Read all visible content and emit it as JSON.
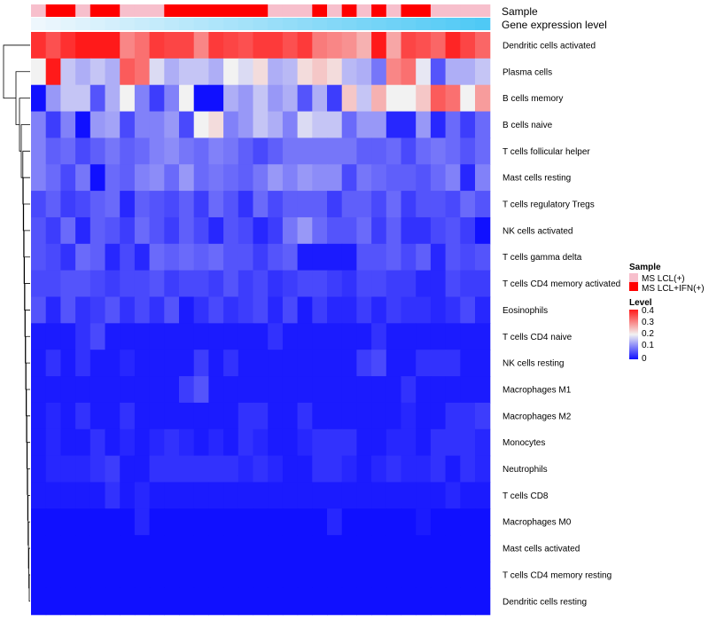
{
  "chart_data": {
    "type": "heatmap",
    "columns": 31,
    "value_range": [
      0,
      0.4
    ],
    "color_scale": {
      "low": "#1010ff",
      "mid": "#f2f2f2",
      "high": "#ff1a1a",
      "mid_value": 0.2
    },
    "annotation_rows": [
      {
        "name": "Sample",
        "labels": [
          "MS LCL(+)",
          "MS LCL+IFN(+)",
          "MS LCL+IFN(+)",
          "MS LCL(+)",
          "MS LCL+IFN(+)",
          "MS LCL+IFN(+)",
          "MS LCL(+)",
          "MS LCL(+)",
          "MS LCL(+)",
          "MS LCL+IFN(+)",
          "MS LCL+IFN(+)",
          "MS LCL+IFN(+)",
          "MS LCL+IFN(+)",
          "MS LCL+IFN(+)",
          "MS LCL+IFN(+)",
          "MS LCL+IFN(+)",
          "MS LCL(+)",
          "MS LCL(+)",
          "MS LCL(+)",
          "MS LCL+IFN(+)",
          "MS LCL(+)",
          "MS LCL+IFN(+)",
          "MS LCL(+)",
          "MS LCL+IFN(+)",
          "MS LCL(+)",
          "MS LCL+IFN(+)",
          "MS LCL+IFN(+)",
          "MS LCL(+)",
          "MS LCL(+)",
          "MS LCL(+)",
          "MS LCL(+)"
        ]
      },
      {
        "name": "Gene expression level",
        "gradient": [
          "#eef7fd",
          "#4fc9f5"
        ]
      }
    ],
    "rows": [
      {
        "label": "Dendritic cells activated",
        "values": [
          0.38,
          0.35,
          0.38,
          0.4,
          0.4,
          0.4,
          0.3,
          0.32,
          0.37,
          0.36,
          0.36,
          0.3,
          0.37,
          0.36,
          0.35,
          0.37,
          0.37,
          0.35,
          0.37,
          0.31,
          0.3,
          0.29,
          0.26,
          0.4,
          0.27,
          0.36,
          0.35,
          0.33,
          0.39,
          0.36,
          0.33
        ]
      },
      {
        "label": "Plasma cells",
        "values": [
          0.2,
          0.4,
          0.16,
          0.14,
          0.16,
          0.14,
          0.34,
          0.32,
          0.18,
          0.14,
          0.16,
          0.16,
          0.14,
          0.2,
          0.18,
          0.22,
          0.14,
          0.15,
          0.22,
          0.24,
          0.22,
          0.15,
          0.14,
          0.09,
          0.3,
          0.32,
          0.19,
          0.06,
          0.14,
          0.14,
          0.16
        ]
      },
      {
        "label": "B cells memory",
        "values": [
          0.0,
          0.12,
          0.16,
          0.16,
          0.06,
          0.14,
          0.2,
          0.1,
          0.04,
          0.1,
          0.2,
          0.0,
          0.0,
          0.14,
          0.12,
          0.16,
          0.12,
          0.14,
          0.06,
          0.14,
          0.04,
          0.24,
          0.16,
          0.26,
          0.2,
          0.2,
          0.24,
          0.34,
          0.32,
          0.2,
          0.28
        ]
      },
      {
        "label": "B cells naive",
        "values": [
          0.1,
          0.04,
          0.1,
          0.0,
          0.12,
          0.13,
          0.05,
          0.1,
          0.1,
          0.12,
          0.05,
          0.2,
          0.22,
          0.1,
          0.12,
          0.16,
          0.14,
          0.1,
          0.18,
          0.16,
          0.16,
          0.08,
          0.12,
          0.12,
          0.02,
          0.02,
          0.12,
          0.02,
          0.08,
          0.04,
          0.08
        ]
      },
      {
        "label": "T cells follicular helper",
        "values": [
          0.1,
          0.07,
          0.08,
          0.05,
          0.07,
          0.09,
          0.07,
          0.08,
          0.1,
          0.11,
          0.09,
          0.08,
          0.1,
          0.09,
          0.07,
          0.05,
          0.07,
          0.09,
          0.09,
          0.09,
          0.09,
          0.09,
          0.07,
          0.07,
          0.08,
          0.05,
          0.08,
          0.09,
          0.08,
          0.06,
          0.08
        ]
      },
      {
        "label": "Mast cells resting",
        "values": [
          0.1,
          0.08,
          0.05,
          0.09,
          0.0,
          0.08,
          0.07,
          0.1,
          0.11,
          0.08,
          0.12,
          0.08,
          0.09,
          0.08,
          0.07,
          0.09,
          0.12,
          0.1,
          0.12,
          0.11,
          0.11,
          0.05,
          0.09,
          0.08,
          0.07,
          0.07,
          0.06,
          0.08,
          0.1,
          0.02,
          0.1
        ]
      },
      {
        "label": "T cells regulatory  Tregs",
        "values": [
          0.05,
          0.07,
          0.04,
          0.05,
          0.07,
          0.08,
          0.02,
          0.07,
          0.06,
          0.05,
          0.07,
          0.04,
          0.08,
          0.06,
          0.03,
          0.08,
          0.05,
          0.07,
          0.07,
          0.07,
          0.04,
          0.07,
          0.07,
          0.05,
          0.08,
          0.04,
          0.06,
          0.06,
          0.05,
          0.08,
          0.06
        ]
      },
      {
        "label": "NK cells activated",
        "values": [
          0.06,
          0.04,
          0.08,
          0.02,
          0.07,
          0.06,
          0.04,
          0.08,
          0.06,
          0.04,
          0.07,
          0.05,
          0.02,
          0.06,
          0.05,
          0.02,
          0.04,
          0.09,
          0.12,
          0.08,
          0.06,
          0.06,
          0.08,
          0.04,
          0.07,
          0.03,
          0.03,
          0.05,
          0.06,
          0.04,
          0.0
        ]
      },
      {
        "label": "T cells gamma delta",
        "values": [
          0.06,
          0.05,
          0.03,
          0.08,
          0.07,
          0.02,
          0.05,
          0.02,
          0.08,
          0.07,
          0.08,
          0.07,
          0.08,
          0.06,
          0.06,
          0.04,
          0.06,
          0.07,
          0.01,
          0.01,
          0.01,
          0.01,
          0.06,
          0.06,
          0.07,
          0.05,
          0.07,
          0.02,
          0.06,
          0.05,
          0.06
        ]
      },
      {
        "label": "T cells CD4 memory activated",
        "values": [
          0.05,
          0.05,
          0.06,
          0.06,
          0.05,
          0.04,
          0.05,
          0.05,
          0.06,
          0.04,
          0.05,
          0.05,
          0.04,
          0.06,
          0.04,
          0.05,
          0.03,
          0.04,
          0.05,
          0.05,
          0.04,
          0.03,
          0.05,
          0.05,
          0.04,
          0.04,
          0.02,
          0.02,
          0.05,
          0.04,
          0.04
        ]
      },
      {
        "label": "Eosinophils",
        "values": [
          0.06,
          0.02,
          0.06,
          0.03,
          0.04,
          0.06,
          0.03,
          0.05,
          0.03,
          0.06,
          0.01,
          0.03,
          0.05,
          0.03,
          0.04,
          0.05,
          0.02,
          0.05,
          0.01,
          0.04,
          0.02,
          0.02,
          0.04,
          0.02,
          0.04,
          0.03,
          0.03,
          0.02,
          0.03,
          0.05,
          0.02
        ]
      },
      {
        "label": "T cells CD4 naive",
        "values": [
          0.01,
          0.01,
          0.01,
          0.03,
          0.05,
          0.01,
          0.01,
          0.01,
          0.01,
          0.01,
          0.01,
          0.01,
          0.01,
          0.01,
          0.01,
          0.01,
          0.03,
          0.01,
          0.01,
          0.01,
          0.01,
          0.01,
          0.01,
          0.03,
          0.01,
          0.01,
          0.01,
          0.01,
          0.01,
          0.01,
          0.01
        ]
      },
      {
        "label": "NK cells resting",
        "values": [
          0.01,
          0.03,
          0.01,
          0.03,
          0.01,
          0.01,
          0.02,
          0.01,
          0.01,
          0.01,
          0.01,
          0.04,
          0.01,
          0.03,
          0.01,
          0.01,
          0.01,
          0.01,
          0.01,
          0.01,
          0.01,
          0.01,
          0.04,
          0.05,
          0.01,
          0.01,
          0.03,
          0.03,
          0.03,
          0.01,
          0.01
        ]
      },
      {
        "label": "Macrophages M1",
        "values": [
          0.01,
          0.01,
          0.01,
          0.01,
          0.01,
          0.01,
          0.01,
          0.01,
          0.01,
          0.01,
          0.04,
          0.06,
          0.01,
          0.01,
          0.01,
          0.01,
          0.01,
          0.01,
          0.01,
          0.01,
          0.01,
          0.01,
          0.01,
          0.01,
          0.01,
          0.03,
          0.01,
          0.01,
          0.01,
          0.01,
          0.01
        ]
      },
      {
        "label": "Macrophages M2",
        "values": [
          0.01,
          0.02,
          0.01,
          0.03,
          0.01,
          0.01,
          0.03,
          0.01,
          0.01,
          0.01,
          0.01,
          0.01,
          0.01,
          0.01,
          0.03,
          0.03,
          0.01,
          0.01,
          0.03,
          0.01,
          0.01,
          0.01,
          0.01,
          0.01,
          0.01,
          0.02,
          0.01,
          0.01,
          0.03,
          0.03,
          0.04
        ]
      },
      {
        "label": "Monocytes",
        "values": [
          0.01,
          0.02,
          0.01,
          0.01,
          0.03,
          0.01,
          0.02,
          0.01,
          0.02,
          0.03,
          0.02,
          0.01,
          0.02,
          0.01,
          0.03,
          0.02,
          0.01,
          0.01,
          0.02,
          0.03,
          0.03,
          0.03,
          0.01,
          0.01,
          0.02,
          0.02,
          0.01,
          0.03,
          0.03,
          0.03,
          0.02
        ]
      },
      {
        "label": "Neutrophils",
        "values": [
          0.01,
          0.02,
          0.02,
          0.02,
          0.03,
          0.04,
          0.01,
          0.01,
          0.03,
          0.03,
          0.03,
          0.03,
          0.03,
          0.03,
          0.02,
          0.03,
          0.02,
          0.01,
          0.01,
          0.03,
          0.03,
          0.02,
          0.01,
          0.02,
          0.03,
          0.02,
          0.02,
          0.03,
          0.01,
          0.03,
          0.02
        ]
      },
      {
        "label": "T cells CD8",
        "values": [
          0.01,
          0.01,
          0.01,
          0.01,
          0.01,
          0.03,
          0.01,
          0.02,
          0.01,
          0.01,
          0.01,
          0.01,
          0.01,
          0.01,
          0.01,
          0.01,
          0.01,
          0.01,
          0.01,
          0.01,
          0.01,
          0.01,
          0.01,
          0.01,
          0.01,
          0.01,
          0.01,
          0.01,
          0.02,
          0.01,
          0.01
        ]
      },
      {
        "label": "Macrophages M0",
        "values": [
          0.0,
          0.0,
          0.0,
          0.0,
          0.0,
          0.0,
          0.0,
          0.02,
          0.0,
          0.0,
          0.0,
          0.0,
          0.0,
          0.0,
          0.0,
          0.0,
          0.0,
          0.0,
          0.0,
          0.0,
          0.02,
          0.0,
          0.0,
          0.0,
          0.0,
          0.0,
          0.01,
          0.0,
          0.0,
          0.0,
          0.0
        ]
      },
      {
        "label": "Mast cells activated",
        "values": [
          0.0,
          0.0,
          0.0,
          0.0,
          0.0,
          0.0,
          0.0,
          0.0,
          0.0,
          0.0,
          0.0,
          0.0,
          0.0,
          0.0,
          0.0,
          0.0,
          0.0,
          0.0,
          0.0,
          0.0,
          0.0,
          0.0,
          0.0,
          0.0,
          0.0,
          0.0,
          0.0,
          0.0,
          0.0,
          0.0,
          0.0
        ]
      },
      {
        "label": "T cells CD4 memory resting",
        "values": [
          0.0,
          0.0,
          0.0,
          0.0,
          0.0,
          0.0,
          0.0,
          0.0,
          0.0,
          0.0,
          0.0,
          0.0,
          0.0,
          0.0,
          0.0,
          0.0,
          0.0,
          0.0,
          0.0,
          0.0,
          0.0,
          0.0,
          0.0,
          0.0,
          0.0,
          0.0,
          0.0,
          0.0,
          0.0,
          0.0,
          0.0
        ]
      },
      {
        "label": "Dendritic cells resting",
        "values": [
          0.0,
          0.0,
          0.0,
          0.0,
          0.0,
          0.0,
          0.0,
          0.0,
          0.0,
          0.0,
          0.0,
          0.0,
          0.0,
          0.0,
          0.0,
          0.0,
          0.0,
          0.0,
          0.0,
          0.0,
          0.0,
          0.0,
          0.0,
          0.0,
          0.0,
          0.0,
          0.0,
          0.0,
          0.0,
          0.0,
          0.0
        ]
      }
    ],
    "legend": {
      "sample": {
        "title": "Sample",
        "items": [
          {
            "label": "MS LCL(+)",
            "color": "#f7bfcc"
          },
          {
            "label": "MS LCL+IFN(+)",
            "color": "#ff0000"
          }
        ]
      },
      "level": {
        "title": "Level",
        "ticks": [
          "0.4",
          "0.3",
          "0.2",
          "0.1",
          "0"
        ]
      }
    }
  }
}
